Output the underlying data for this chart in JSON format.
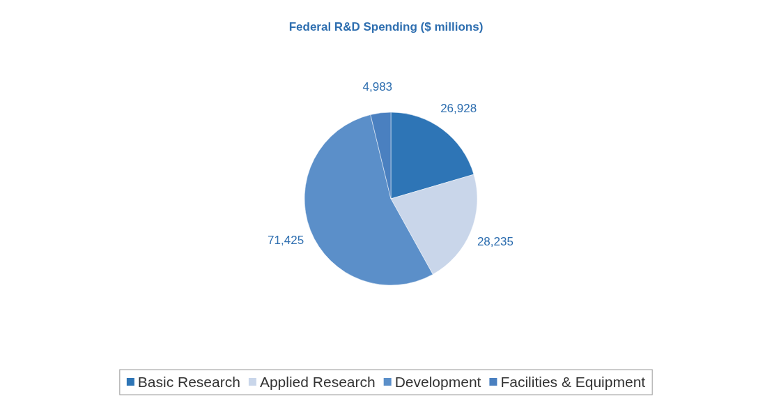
{
  "chart_data": {
    "type": "pie",
    "title": "Federal R&D Spending ($ millions)",
    "categories": [
      "Basic Research",
      "Applied Research",
      "Development",
      "Facilities & Equipment"
    ],
    "values": [
      26928,
      28235,
      71425,
      4983
    ],
    "colors": [
      "#2e75b6",
      "#c9d6ea",
      "#5b8fc9",
      "#4a80c0"
    ],
    "value_labels": [
      "26,928",
      "28,235",
      "71,425",
      "4,983"
    ],
    "legend": "bottom"
  }
}
